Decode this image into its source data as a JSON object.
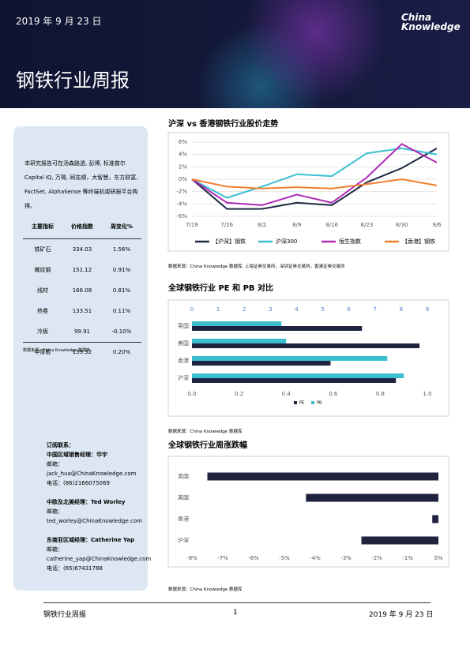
{
  "header": {
    "date": "2019 年 9 月 23 日",
    "logo_top": "China",
    "logo_bottom": "Knowledge",
    "title": "钢铁行业周报"
  },
  "sidebar": {
    "intro": "本研究报告可在汤森路透, 彭博, 标准普尔 Capital IQ, 万得, 同花顺，大智慧，东方财富, FactSet, AlphaSense 等终端机或研报平台购得。",
    "table": {
      "header": [
        "主要指标",
        "价格指数",
        "周变化%"
      ],
      "rows": [
        [
          "铁矿石",
          "334.03",
          "1.56%"
        ],
        [
          "螺纹钢",
          "151.12",
          "0.91%"
        ],
        [
          "线材",
          "166.08",
          "0.81%"
        ],
        [
          "热卷",
          "133.51",
          "0.11%"
        ],
        [
          "冷板",
          "99.91",
          "-0.10%"
        ],
        [
          "中厚板",
          "139.32",
          "0.20%"
        ]
      ]
    },
    "table_source": "数据来源：China Knowledge 数据库",
    "contacts": [
      "订阅联系：",
      "中国区域销售经理：华宇",
      "邮箱：jack_hua@ChinaKnowledge.com",
      "电话：(86)2166075069",
      "中欧及北美经理：Ted Worley",
      "邮箱：ted_worley@ChinaKnowledge.com",
      "东南亚区域经理：Catherine Yap",
      "邮箱：catherine_yap@ChinaKnowledge.com",
      "电话：(65)67431788"
    ]
  },
  "sources": [
    "数据来源：China Knowledge 数据库, 上海证券交易所，深圳证券交易所，香港证券交易所",
    "数据来源：China Knowledge 数据库",
    "数据来源：China Knowledge 数据库"
  ],
  "footer": {
    "left": "钢铁行业周报",
    "page": "1",
    "right": "2019 年 9 月 23 日"
  },
  "chart_data": [
    {
      "type": "line",
      "title": "沪深 vs 香港钢铁行业股价走势",
      "categories": [
        "7/19",
        "7/26",
        "8/2",
        "8/9",
        "8/16",
        "8/23",
        "8/30",
        "9/6"
      ],
      "ylim": [
        -6,
        6
      ],
      "yticks": [
        {
          "value": 6,
          "label": "6%"
        },
        {
          "value": 4,
          "label": "4%"
        },
        {
          "value": 2,
          "label": "2%"
        },
        {
          "value": 0,
          "label": "0%"
        },
        {
          "value": -2,
          "label": "-2%"
        },
        {
          "value": -4,
          "label": "-4%"
        },
        {
          "value": -6,
          "label": "-6%"
        }
      ],
      "grid": true,
      "series": [
        {
          "name": "【沪深】钢铁",
          "color": "#1f2a44",
          "values": [
            0,
            -4.8,
            -4.8,
            -3.8,
            -4.2,
            -0.5,
            1.8,
            5
          ]
        },
        {
          "name": "沪深300",
          "color": "#3bbfcf",
          "values": [
            0,
            -3,
            -1.2,
            0.8,
            0.5,
            4.2,
            5,
            4
          ]
        },
        {
          "name": "恒生指数",
          "color": "#b02ab8",
          "values": [
            0,
            -3.8,
            -4.2,
            -2.5,
            -3.8,
            0.3,
            5.7,
            2.7
          ]
        },
        {
          "name": "【香港】钢铁",
          "color": "#f08030",
          "values": [
            0,
            -1.2,
            -1.5,
            -1.3,
            -1.5,
            -0.8,
            0,
            -1
          ]
        }
      ]
    },
    {
      "type": "bar",
      "orientation": "horizontal",
      "title": "全球钢铁行业 PE 和 PB 对比",
      "categories": [
        "英国",
        "美国",
        "香港",
        "沪深"
      ],
      "xlim": [
        0,
        1
      ],
      "xticks": [
        {
          "value": 0,
          "label": "0.0"
        },
        {
          "value": 0.2,
          "label": "0.2"
        },
        {
          "value": 0.4,
          "label": "0.4"
        },
        {
          "value": 0.6,
          "label": "0.6"
        },
        {
          "value": 0.8,
          "label": "0.8"
        },
        {
          "value": 1,
          "label": "1.0"
        }
      ],
      "x2lim": [
        0,
        9
      ],
      "x2ticks": [
        0,
        1,
        2,
        3,
        4,
        5,
        6,
        7,
        8,
        9
      ],
      "grid": false,
      "series": [
        {
          "name": "PE",
          "color": "#1f2340",
          "axis": "x2",
          "values": [
            6.5,
            8.7,
            5.3,
            7.8
          ]
        },
        {
          "name": "PB",
          "color": "#3bbfcf",
          "values": [
            0.38,
            0.4,
            0.83,
            0.9
          ]
        }
      ]
    },
    {
      "type": "bar",
      "orientation": "horizontal",
      "title": "全球钢铁行业周涨跌幅",
      "categories": [
        "英国",
        "美国",
        "香港",
        "沪深"
      ],
      "color": "#1f2340",
      "xlim": [
        -8,
        0
      ],
      "xticks": [
        {
          "value": -8,
          "label": "-8%"
        },
        {
          "value": -7,
          "label": "-7%"
        },
        {
          "value": -6,
          "label": "-6%"
        },
        {
          "value": -5,
          "label": "-5%"
        },
        {
          "value": -4,
          "label": "-4%"
        },
        {
          "value": -3,
          "label": "-3%"
        },
        {
          "value": -2,
          "label": "-2%"
        },
        {
          "value": -1,
          "label": "-1%"
        },
        {
          "value": 0,
          "label": "0%"
        }
      ],
      "grid": false,
      "values": [
        -7.5,
        -4.3,
        -0.2,
        -2.5
      ]
    }
  ]
}
